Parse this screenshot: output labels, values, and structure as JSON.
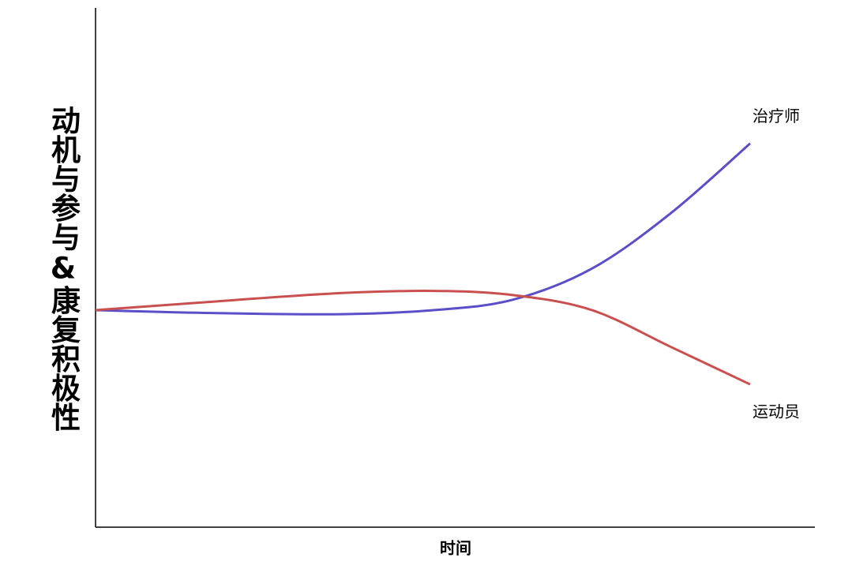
{
  "chart_data": {
    "type": "line",
    "x_label": "时间",
    "y_label": "动机与参与&康复积极性",
    "x": [
      0,
      14,
      33,
      47,
      58,
      69,
      80,
      91
    ],
    "xlim": [
      0,
      100
    ],
    "ylim": [
      0,
      100
    ],
    "series": [
      {
        "name": "治疗师",
        "color": "#5b4fc9",
        "values": [
          41.8,
          41.3,
          41.0,
          41.8,
          43.8,
          49.8,
          60.5,
          73.9
        ]
      },
      {
        "name": "运动员",
        "color": "#c9504f",
        "values": [
          41.8,
          43.2,
          45.0,
          45.5,
          44.7,
          41.8,
          34.7,
          27.5
        ]
      }
    ]
  }
}
